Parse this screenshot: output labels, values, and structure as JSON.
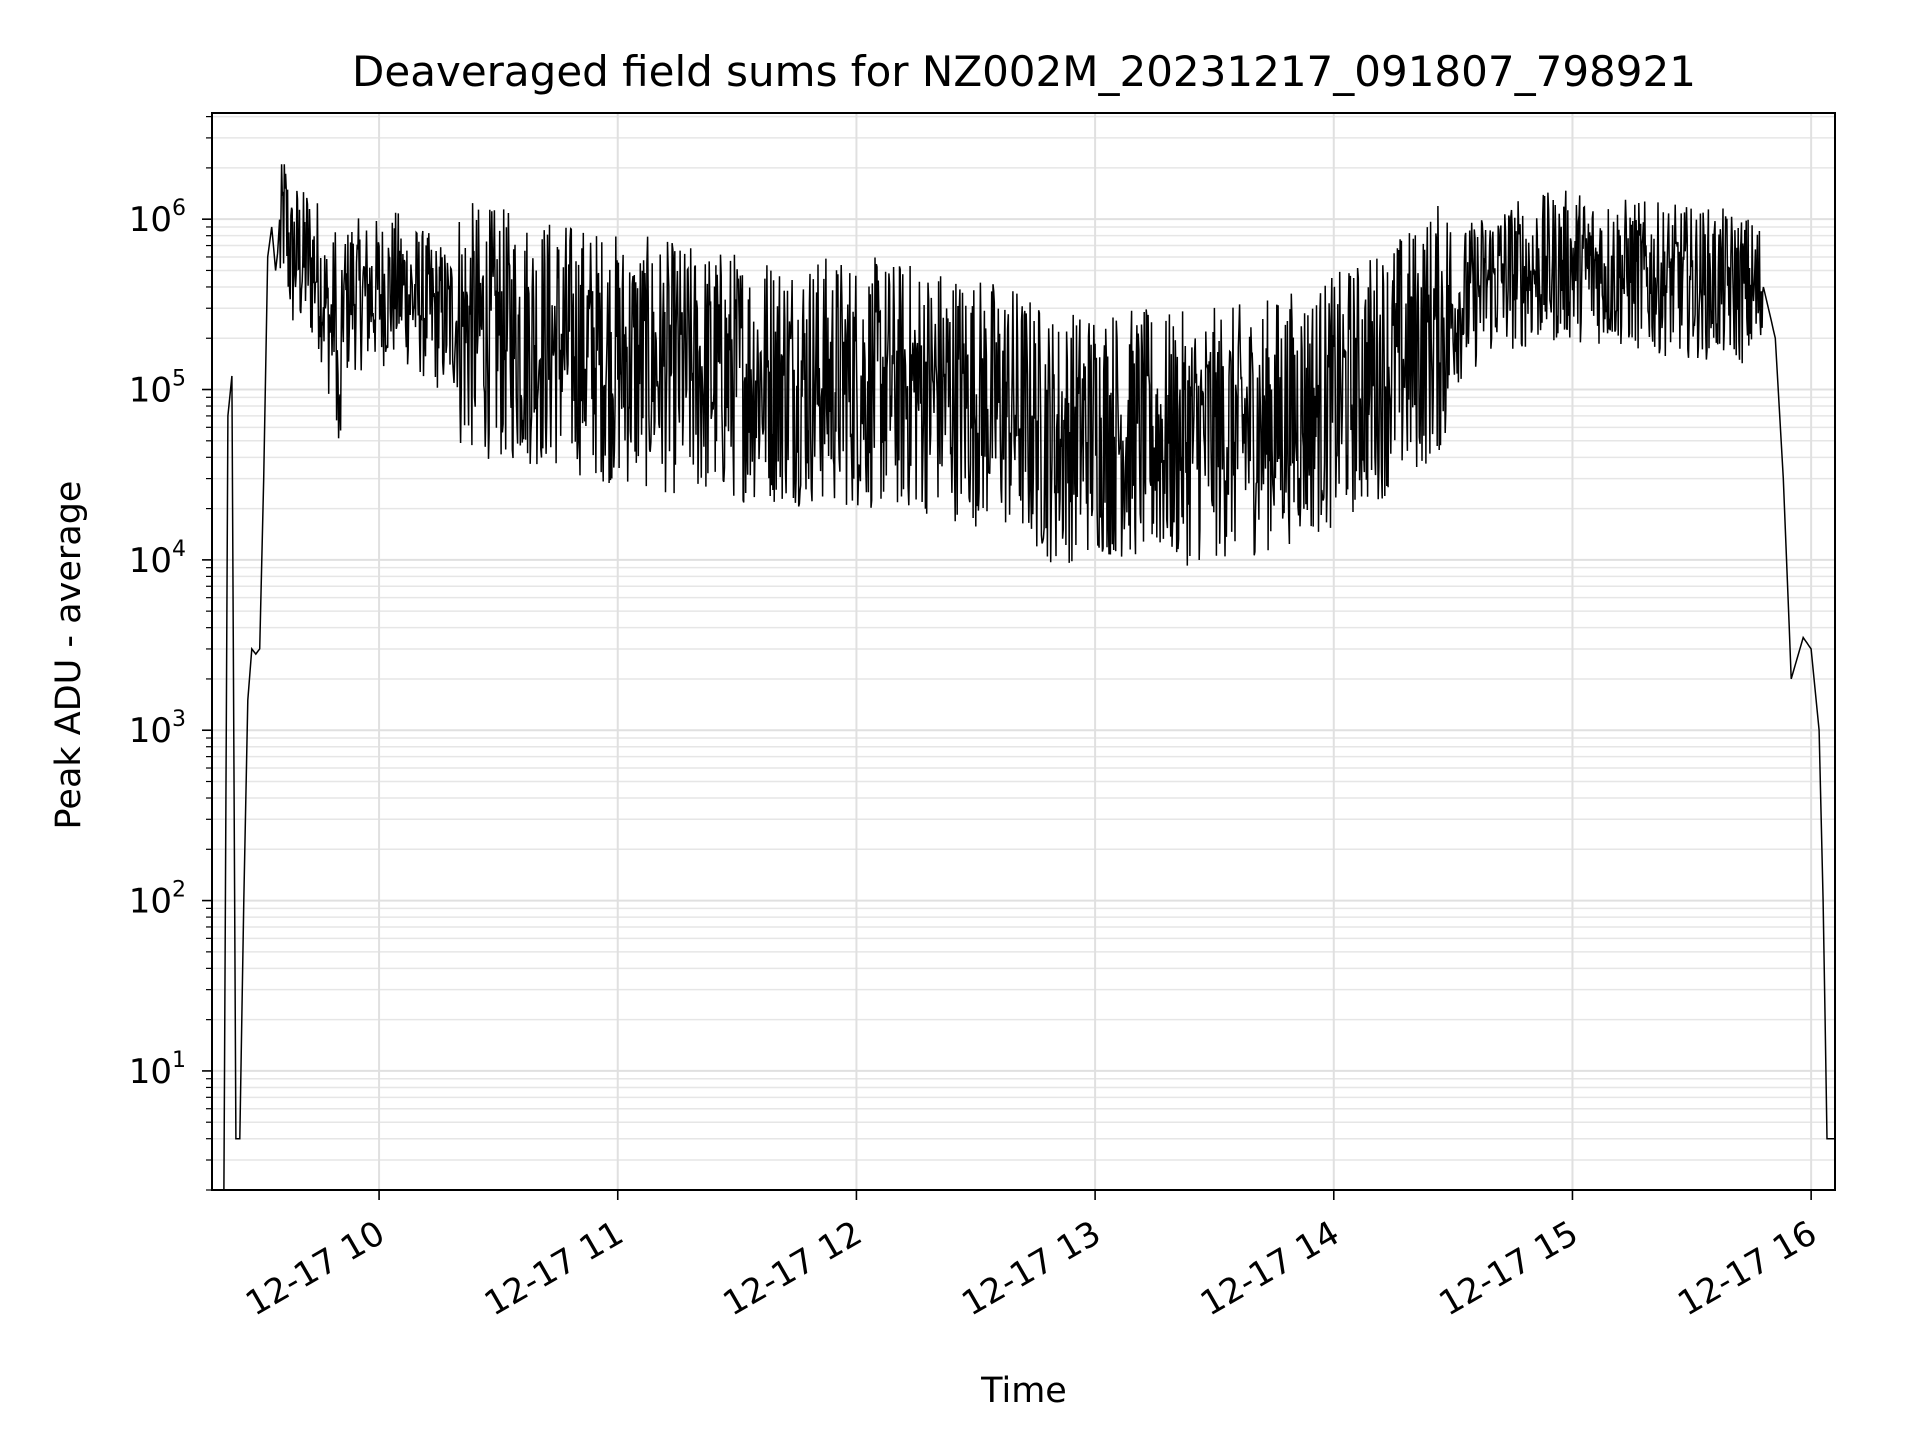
{
  "chart_data": {
    "type": "line",
    "title": "Deaveraged field sums for NZ002M_20231217_091807_798921",
    "xlabel": "Time",
    "ylabel": "Peak ADU - average",
    "y_scale": "log",
    "grid": true,
    "color": "#000000",
    "xlim": [
      "2023-12-17 09:18",
      "2023-12-17 16:06"
    ],
    "ylim": [
      2,
      4200000
    ],
    "x_ticks": [
      {
        "label": "12-17 10",
        "value": "2023-12-17 10:00"
      },
      {
        "label": "12-17 11",
        "value": "2023-12-17 11:00"
      },
      {
        "label": "12-17 12",
        "value": "2023-12-17 12:00"
      },
      {
        "label": "12-17 13",
        "value": "2023-12-17 13:00"
      },
      {
        "label": "12-17 14",
        "value": "2023-12-17 14:00"
      },
      {
        "label": "12-17 15",
        "value": "2023-12-17 15:00"
      },
      {
        "label": "12-17 16",
        "value": "2023-12-17 16:00"
      }
    ],
    "y_ticks": [
      {
        "base": "10",
        "exp": "1",
        "value": 10
      },
      {
        "base": "10",
        "exp": "2",
        "value": 100
      },
      {
        "base": "10",
        "exp": "3",
        "value": 1000
      },
      {
        "base": "10",
        "exp": "4",
        "value": 10000
      },
      {
        "base": "10",
        "exp": "5",
        "value": 100000
      },
      {
        "base": "10",
        "exp": "6",
        "value": 1000000
      }
    ],
    "series": [
      {
        "x": [
          "2023-12-17 09:21",
          "2023-12-17 09:22",
          "2023-12-17 09:23",
          "2023-12-17 09:24",
          "2023-12-17 09:25",
          "2023-12-17 09:26",
          "2023-12-17 09:27",
          "2023-12-17 09:28",
          "2023-12-17 09:29",
          "2023-12-17 09:30",
          "2023-12-17 09:31",
          "2023-12-17 09:32",
          "2023-12-17 09:33",
          "2023-12-17 09:34",
          "2023-12-17 09:35",
          "2023-12-17 09:36",
          "2023-12-17 09:37",
          "2023-12-17 09:38",
          "2023-12-17 09:39",
          "2023-12-17 09:40",
          "2023-12-17 09:41",
          "2023-12-17 09:42",
          "2023-12-17 09:43",
          "2023-12-17 09:44",
          "2023-12-17 09:45",
          "2023-12-17 09:46",
          "2023-12-17 09:47",
          "2023-12-17 09:48",
          "2023-12-17 09:49",
          "2023-12-17 09:50",
          "2023-12-17 09:51",
          "2023-12-17 09:52",
          "2023-12-17 09:53",
          "2023-12-17 09:54",
          "2023-12-17 09:55",
          "2023-12-17 09:58",
          "2023-12-17 10:05",
          "2023-12-17 10:15",
          "2023-12-17 10:30",
          "2023-12-17 10:45",
          "2023-12-17 11:00",
          "2023-12-17 11:20",
          "2023-12-17 11:40",
          "2023-12-17 12:00",
          "2023-12-17 12:20",
          "2023-12-17 12:40",
          "2023-12-17 12:50",
          "2023-12-17 13:00",
          "2023-12-17 13:20",
          "2023-12-17 13:40",
          "2023-12-17 14:00",
          "2023-12-17 14:20",
          "2023-12-17 14:40",
          "2023-12-17 15:00",
          "2023-12-17 15:20",
          "2023-12-17 15:40",
          "2023-12-17 15:48",
          "2023-12-17 15:51",
          "2023-12-17 15:53",
          "2023-12-17 15:55",
          "2023-12-17 15:58",
          "2023-12-17 16:00",
          "2023-12-17 16:02",
          "2023-12-17 16:03",
          "2023-12-17 16:04",
          "2023-12-17 16:06"
        ],
        "y": [
          2,
          70000,
          120000,
          4,
          4,
          100,
          1500,
          3000,
          2800,
          3000,
          30000,
          600000,
          900000,
          500000,
          800000,
          1200000,
          900000,
          600000,
          700000,
          650000,
          600000,
          700000,
          550000,
          600000,
          500000,
          400000,
          300000,
          250000,
          400000,
          50000,
          400000,
          350000,
          450000,
          400000,
          400000,
          400000,
          450000,
          300000,
          250000,
          220000,
          180000,
          150000,
          140000,
          130000,
          120000,
          90000,
          60000,
          70000,
          60000,
          70000,
          100000,
          200000,
          500000,
          600000,
          500000,
          450000,
          400000,
          200000,
          30000,
          2000,
          3500,
          3000,
          1000,
          100,
          4,
          4
        ]
      }
    ]
  }
}
